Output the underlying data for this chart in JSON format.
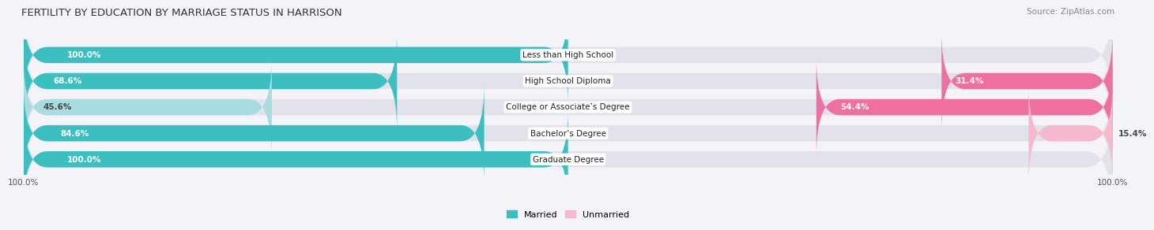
{
  "title": "FERTILITY BY EDUCATION BY MARRIAGE STATUS IN HARRISON",
  "source": "Source: ZipAtlas.com",
  "categories": [
    "Less than High School",
    "High School Diploma",
    "College or Associate’s Degree",
    "Bachelor’s Degree",
    "Graduate Degree"
  ],
  "married": [
    100.0,
    68.6,
    45.6,
    84.6,
    100.0
  ],
  "unmarried": [
    0.0,
    31.4,
    54.4,
    15.4,
    0.0
  ],
  "married_color_dark": "#3bbfc0",
  "married_color_light": "#a8dce0",
  "unmarried_color_dark": "#ef6fa0",
  "unmarried_color_light": "#f5b8cc",
  "bar_bg_color": "#e2e2ea",
  "background_color": "#f4f4f8",
  "label_fontsize": 7.5,
  "value_fontsize": 7.5,
  "title_fontsize": 9.5,
  "source_fontsize": 7.5,
  "legend_fontsize": 8,
  "axis_tick_fontsize": 7.5
}
